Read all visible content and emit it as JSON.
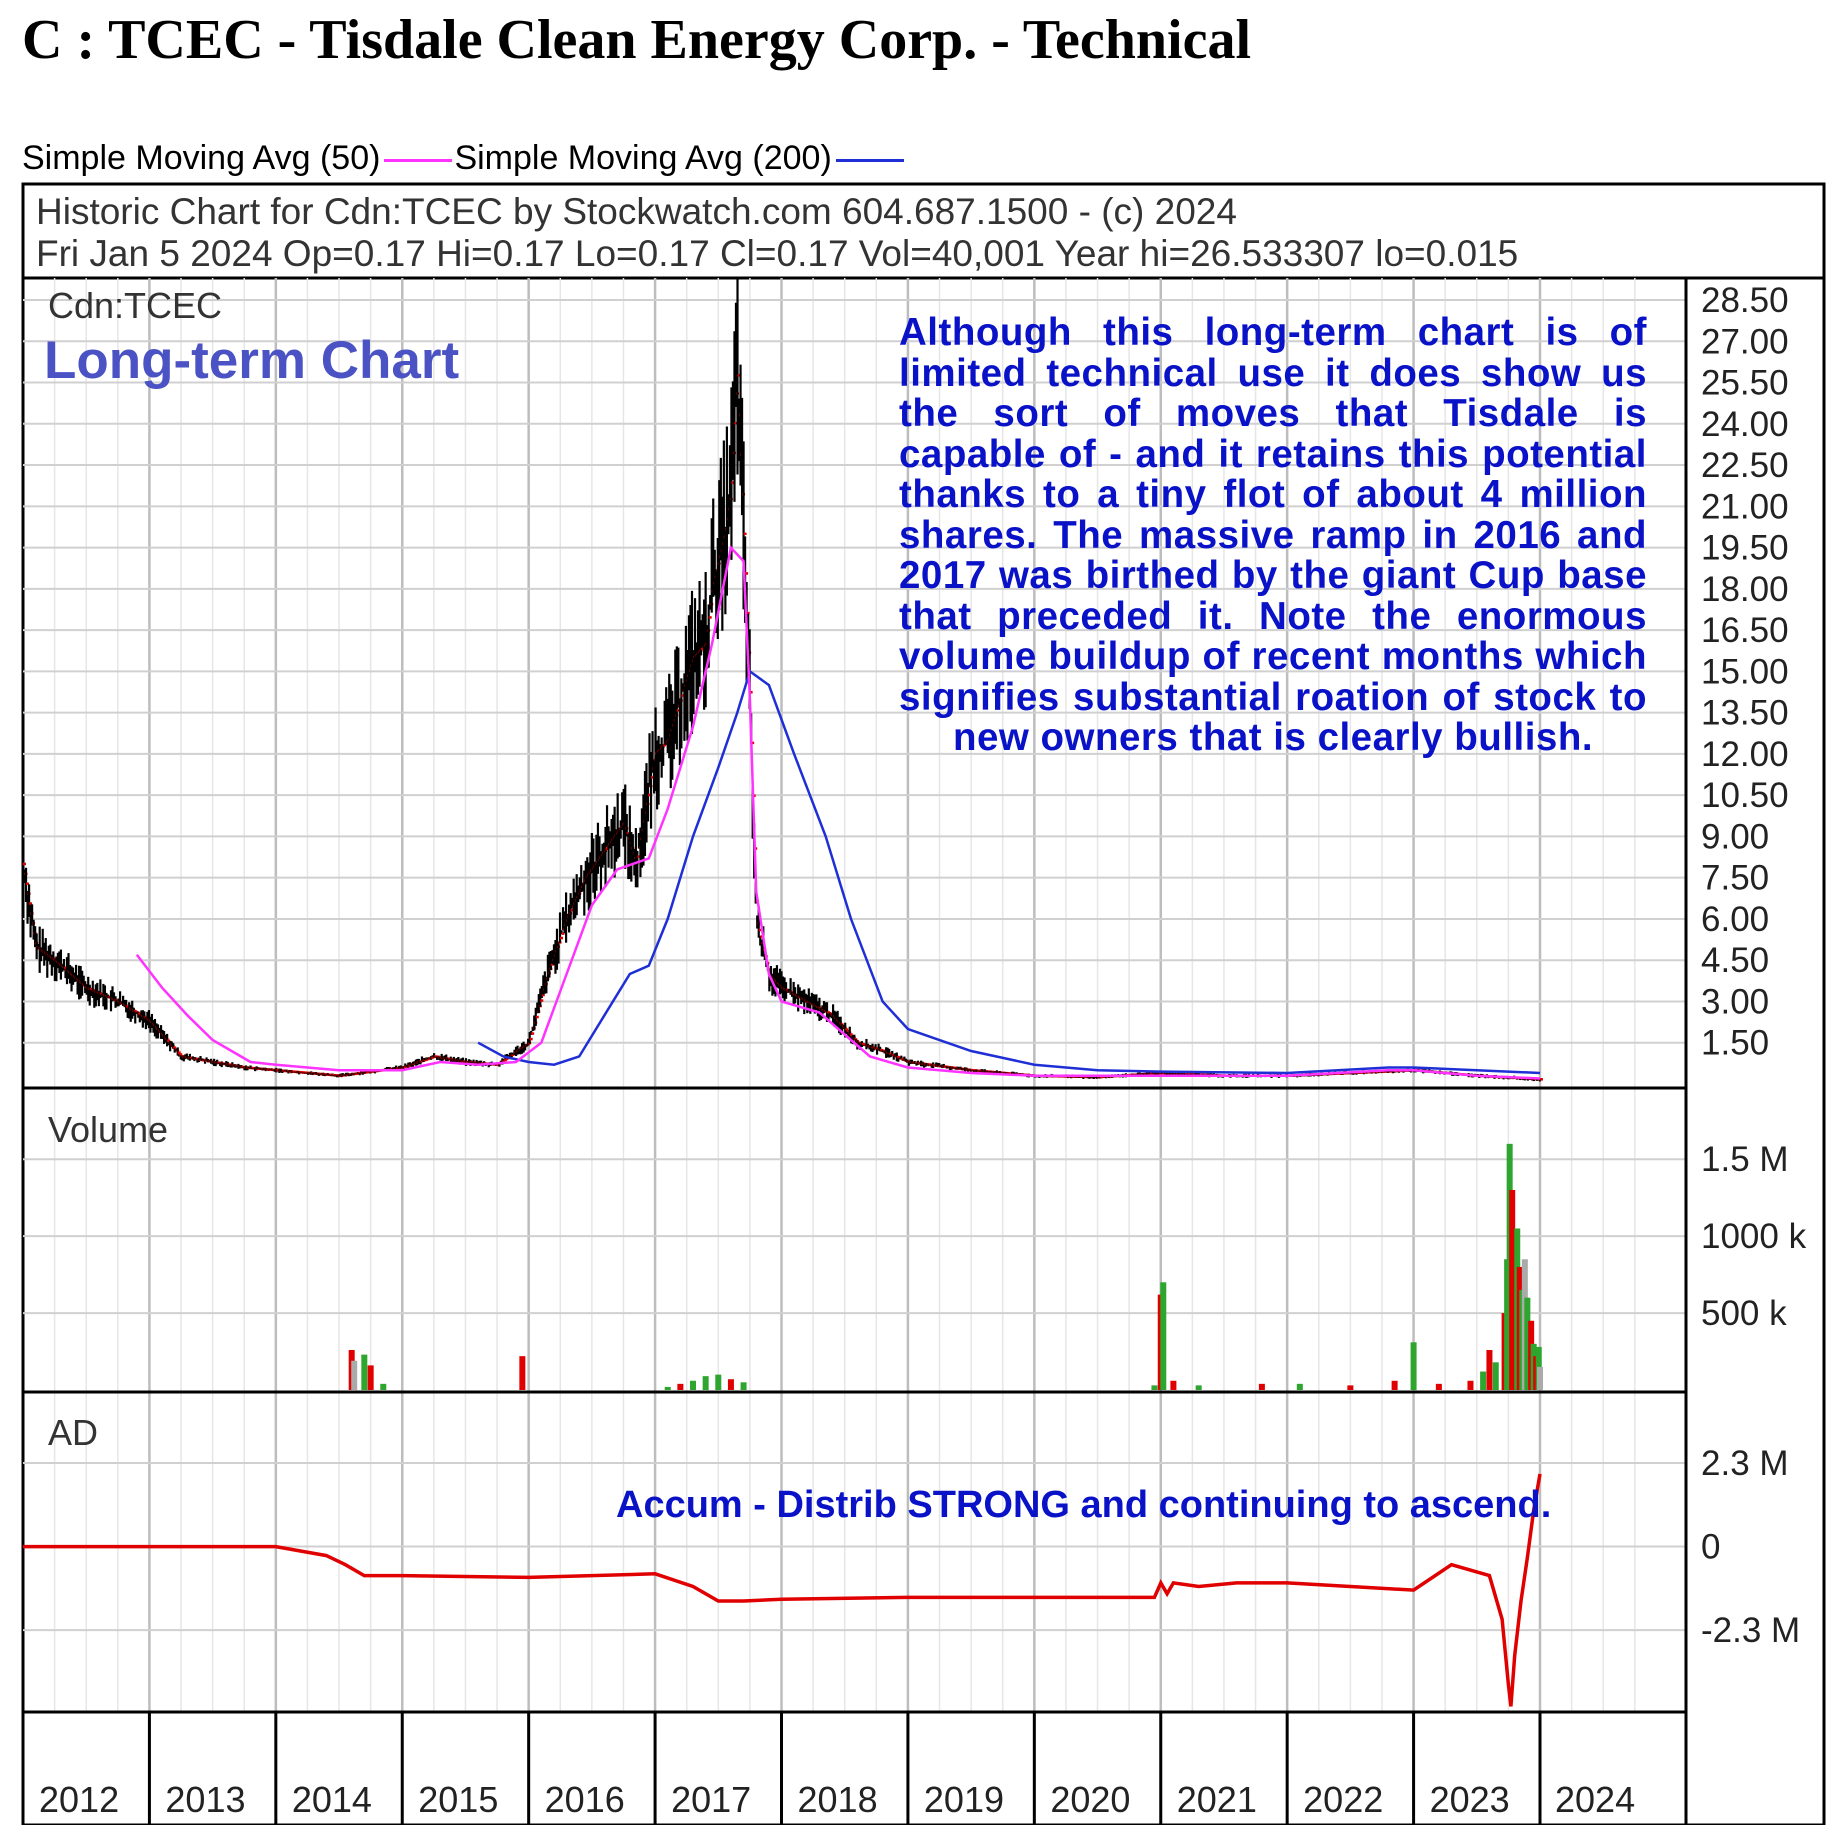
{
  "title": "C : TCEC - Tisdale Clean Energy Corp. - Technical",
  "legend": {
    "sma50_label": "Simple Moving Avg (50)",
    "sma200_label": "Simple Moving Avg (200)",
    "sma50_color": "#ff33ff",
    "sma200_color": "#1f2fd6"
  },
  "header": {
    "line1": "Historic Chart for Cdn:TCEC by Stockwatch.com 604.687.1500 - (c) 2024",
    "line2": "Fri Jan  5 2024  Op=0.17  Hi=0.17  Lo=0.17  Cl=0.17  Vol=40,001  Year hi=26.533307  lo=0.015"
  },
  "price_panel": {
    "symbol": "Cdn:TCEC",
    "overlay_title": "Long-term Chart",
    "note": "Although this long-term chart is of limited technical use it does show us the sort of moves that Tisdale is capable of - and it retains this potential thanks to a tiny flot of about 4 million shares. The massive ramp in 2016 and 2017 was birthed by the giant Cup base that preceded it. Note the enormous volume buildup of recent months which signifies substantial roation of stock to new owners that is clearly bullish."
  },
  "volume_panel": {
    "label": "Volume"
  },
  "ad_panel": {
    "label": "AD",
    "note": "Accum - Distrib STRONG and continuing to ascend."
  },
  "chart_data": [
    {
      "type": "line",
      "panel": "price",
      "ylim": [
        0,
        28.5
      ],
      "yticks": [
        "28.50",
        "27.00",
        "25.50",
        "24.00",
        "22.50",
        "21.00",
        "19.50",
        "18.00",
        "16.50",
        "15.00",
        "13.50",
        "12.00",
        "10.50",
        "9.00",
        "7.50",
        "6.00",
        "4.50",
        "3.00",
        "1.50"
      ],
      "x_years": [
        "2012",
        "2013",
        "2014",
        "2015",
        "2016",
        "2017",
        "2018",
        "2019",
        "2020",
        "2021",
        "2022",
        "2023",
        "2024"
      ],
      "price_colors": {
        "bars": "#000000",
        "close_marks": "#e00000"
      },
      "series": [
        {
          "name": "Price",
          "x": [
            2012.0,
            2012.1,
            2012.25,
            2012.5,
            2012.75,
            2013.0,
            2013.25,
            2013.5,
            2013.75,
            2014.0,
            2014.5,
            2015.0,
            2015.25,
            2015.5,
            2015.75,
            2016.0,
            2016.15,
            2016.3,
            2016.45,
            2016.6,
            2016.75,
            2016.85,
            2017.0,
            2017.1,
            2017.2,
            2017.3,
            2017.4,
            2017.45,
            2017.55,
            2017.6,
            2017.65,
            2017.7,
            2017.75,
            2017.8,
            2017.9,
            2018.0,
            2018.2,
            2018.4,
            2018.6,
            2018.8,
            2019.0,
            2019.5,
            2020.0,
            2020.5,
            2021.0,
            2021.5,
            2022.0,
            2022.5,
            2023.0,
            2023.5,
            2024.0
          ],
          "values": [
            8,
            5,
            4.5,
            3.5,
            3,
            2.3,
            1,
            0.8,
            0.6,
            0.5,
            0.3,
            0.6,
            1,
            0.8,
            0.7,
            1.5,
            4,
            6,
            7.5,
            8.5,
            9.5,
            8,
            12,
            12.5,
            14,
            15.5,
            16,
            18,
            20,
            21.5,
            26,
            20,
            14,
            6,
            4,
            3.5,
            3,
            2.5,
            1.5,
            1.2,
            0.8,
            0.5,
            0.3,
            0.25,
            0.4,
            0.3,
            0.3,
            0.4,
            0.5,
            0.3,
            0.17
          ]
        },
        {
          "name": "Simple Moving Avg (50)",
          "x": [
            2012.9,
            2013.1,
            2013.3,
            2013.5,
            2013.8,
            2014.0,
            2014.5,
            2015.0,
            2015.3,
            2015.6,
            2015.9,
            2016.1,
            2016.3,
            2016.5,
            2016.7,
            2016.95,
            2017.1,
            2017.3,
            2017.45,
            2017.6,
            2017.7,
            2017.75,
            2017.8,
            2017.9,
            2018.0,
            2018.3,
            2018.5,
            2018.7,
            2019.0,
            2019.5,
            2020.0,
            2021.0,
            2022.0,
            2022.8,
            2023.0,
            2023.5,
            2024.0
          ],
          "values": [
            4.7,
            3.5,
            2.5,
            1.6,
            0.8,
            0.7,
            0.5,
            0.5,
            0.8,
            0.7,
            0.8,
            1.5,
            4,
            6.5,
            7.8,
            8.2,
            10,
            13,
            16,
            19.5,
            19,
            14,
            7,
            4,
            3,
            2.6,
            1.8,
            1.0,
            0.6,
            0.4,
            0.3,
            0.3,
            0.3,
            0.5,
            0.5,
            0.3,
            0.2
          ]
        },
        {
          "name": "Simple Moving Avg (200)",
          "x": [
            2015.6,
            2015.8,
            2016.0,
            2016.2,
            2016.4,
            2016.6,
            2016.8,
            2016.95,
            2017.1,
            2017.3,
            2017.5,
            2017.65,
            2017.75,
            2017.9,
            2018.1,
            2018.35,
            2018.55,
            2018.8,
            2019.0,
            2019.5,
            2020.0,
            2020.5,
            2021.0,
            2022.0,
            2022.8,
            2023.0,
            2023.5,
            2024.0
          ],
          "values": [
            1.5,
            1.0,
            0.8,
            0.7,
            1.0,
            2.5,
            4,
            4.3,
            6,
            9,
            11.5,
            13.5,
            15,
            14.5,
            12,
            9,
            6,
            3,
            2,
            1.2,
            0.7,
            0.5,
            0.45,
            0.4,
            0.6,
            0.6,
            0.5,
            0.4
          ]
        }
      ]
    },
    {
      "type": "bar",
      "panel": "volume",
      "ylabel": "Volume",
      "yticks": [
        "1.5 M",
        "1000 k",
        "500 k"
      ],
      "ylim": [
        0,
        1950000
      ],
      "bar_colors": {
        "up": "#2ea52e",
        "down": "#e00000",
        "flat": "#aaaaaa"
      },
      "bars": [
        {
          "x": 2014.6,
          "v": 260000,
          "c": "down"
        },
        {
          "x": 2014.62,
          "v": 190000,
          "c": "flat"
        },
        {
          "x": 2014.7,
          "v": 230000,
          "c": "up"
        },
        {
          "x": 2014.75,
          "v": 160000,
          "c": "down"
        },
        {
          "x": 2014.85,
          "v": 40000,
          "c": "up"
        },
        {
          "x": 2015.95,
          "v": 220000,
          "c": "down"
        },
        {
          "x": 2017.1,
          "v": 20000,
          "c": "up"
        },
        {
          "x": 2017.2,
          "v": 40000,
          "c": "down"
        },
        {
          "x": 2017.3,
          "v": 60000,
          "c": "up"
        },
        {
          "x": 2017.4,
          "v": 90000,
          "c": "up"
        },
        {
          "x": 2017.5,
          "v": 100000,
          "c": "up"
        },
        {
          "x": 2017.6,
          "v": 70000,
          "c": "down"
        },
        {
          "x": 2017.7,
          "v": 50000,
          "c": "up"
        },
        {
          "x": 2020.95,
          "v": 30000,
          "c": "up"
        },
        {
          "x": 2021.0,
          "v": 620000,
          "c": "down"
        },
        {
          "x": 2021.02,
          "v": 700000,
          "c": "up"
        },
        {
          "x": 2021.1,
          "v": 60000,
          "c": "down"
        },
        {
          "x": 2021.3,
          "v": 30000,
          "c": "up"
        },
        {
          "x": 2021.8,
          "v": 40000,
          "c": "down"
        },
        {
          "x": 2022.1,
          "v": 40000,
          "c": "up"
        },
        {
          "x": 2022.5,
          "v": 30000,
          "c": "down"
        },
        {
          "x": 2022.85,
          "v": 60000,
          "c": "down"
        },
        {
          "x": 2023.0,
          "v": 310000,
          "c": "up"
        },
        {
          "x": 2023.2,
          "v": 40000,
          "c": "down"
        },
        {
          "x": 2023.45,
          "v": 60000,
          "c": "down"
        },
        {
          "x": 2023.55,
          "v": 120000,
          "c": "up"
        },
        {
          "x": 2023.6,
          "v": 260000,
          "c": "down"
        },
        {
          "x": 2023.65,
          "v": 180000,
          "c": "up"
        },
        {
          "x": 2023.72,
          "v": 500000,
          "c": "down"
        },
        {
          "x": 2023.74,
          "v": 850000,
          "c": "up"
        },
        {
          "x": 2023.76,
          "v": 1600000,
          "c": "up"
        },
        {
          "x": 2023.78,
          "v": 1300000,
          "c": "down"
        },
        {
          "x": 2023.82,
          "v": 1050000,
          "c": "up"
        },
        {
          "x": 2023.84,
          "v": 800000,
          "c": "down"
        },
        {
          "x": 2023.86,
          "v": 650000,
          "c": "up"
        },
        {
          "x": 2023.88,
          "v": 850000,
          "c": "flat"
        },
        {
          "x": 2023.9,
          "v": 600000,
          "c": "up"
        },
        {
          "x": 2023.93,
          "v": 450000,
          "c": "down"
        },
        {
          "x": 2023.95,
          "v": 300000,
          "c": "up"
        },
        {
          "x": 2023.97,
          "v": 220000,
          "c": "down"
        },
        {
          "x": 2023.99,
          "v": 280000,
          "c": "up"
        },
        {
          "x": 2024.0,
          "v": 150000,
          "c": "flat"
        }
      ]
    },
    {
      "type": "line",
      "panel": "AD",
      "ylabel": "AD",
      "yticks": [
        "2.3 M",
        "0",
        "-2.3 M"
      ],
      "ylim": [
        -4500000,
        4200000
      ],
      "line_color": "#e00000",
      "series": [
        {
          "name": "AD",
          "x": [
            2012.0,
            2013.0,
            2014.0,
            2014.4,
            2014.55,
            2014.65,
            2014.7,
            2015.0,
            2016.0,
            2016.5,
            2017.0,
            2017.3,
            2017.5,
            2017.7,
            2018.0,
            2019.0,
            2020.0,
            2020.95,
            2021.0,
            2021.05,
            2021.1,
            2021.3,
            2021.6,
            2022.0,
            2022.5,
            2023.0,
            2023.3,
            2023.6,
            2023.7,
            2023.75,
            2023.77,
            2023.8,
            2023.85,
            2023.9,
            2023.95,
            2024.0
          ],
          "values": [
            0,
            0,
            0,
            -250000,
            -500000,
            -700000,
            -800000,
            -800000,
            -850000,
            -800000,
            -750000,
            -1100000,
            -1500000,
            -1500000,
            -1450000,
            -1400000,
            -1400000,
            -1400000,
            -1000000,
            -1300000,
            -1000000,
            -1100000,
            -1000000,
            -1000000,
            -1100000,
            -1200000,
            -500000,
            -800000,
            -2000000,
            -3800000,
            -4400000,
            -3000000,
            -1500000,
            -300000,
            1000000,
            2000000
          ]
        }
      ]
    }
  ]
}
